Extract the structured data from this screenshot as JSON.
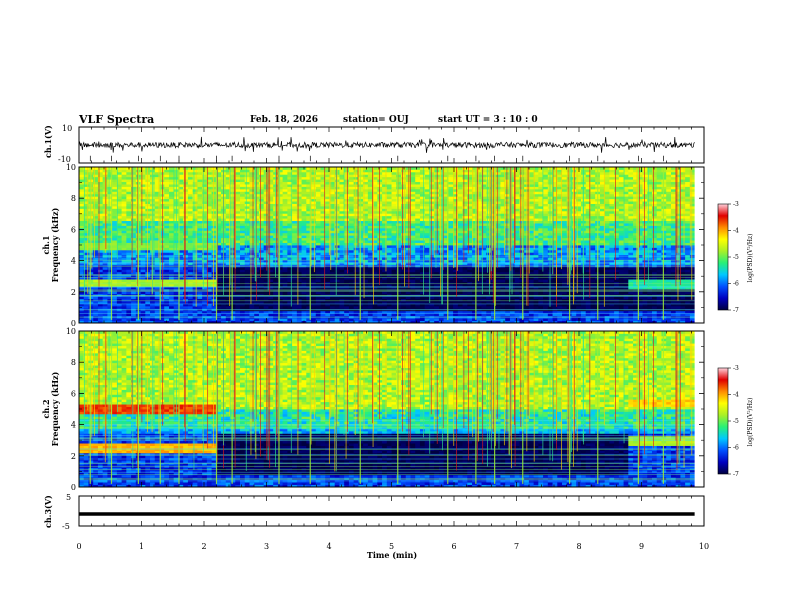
{
  "chart_data": {
    "type": "heatmap",
    "title": "VLF Spectra",
    "date": "Feb. 18, 2026",
    "station": "station= OUJ",
    "start_ut": "start  UT  =   3  : 10 : 0",
    "x": {
      "label": "Time  (min)",
      "range": [
        0,
        10
      ],
      "ticks": [
        "0",
        "1",
        "2",
        "3",
        "4",
        "5",
        "6",
        "7",
        "8",
        "9",
        "10"
      ],
      "data_end": 9.85
    },
    "panels": [
      {
        "id": "ch1-waveform",
        "kind": "waveform",
        "ylabel": "ch.1(V)",
        "yrange": [
          -10,
          10
        ],
        "ticks": [
          "10",
          "-10"
        ]
      },
      {
        "id": "ch1-spectrum",
        "kind": "spectrogram",
        "ylabel1": "ch.1",
        "ylabel2": "Frequency  (kHz)",
        "yrange": [
          0,
          10
        ],
        "ticks": [
          "0",
          "2",
          "4",
          "6",
          "8",
          "10"
        ],
        "bands": [
          {
            "freq_khz": 2.6,
            "t_start": 0,
            "t_end": 2.2,
            "level": -4.6
          },
          {
            "freq_khz": 4.9,
            "t_start": 0,
            "t_end": 2.2,
            "level": -4.8
          },
          {
            "freq_khz": 2.5,
            "t_start": 8.8,
            "t_end": 9.85,
            "level": -5.2
          }
        ],
        "quiet_region": {
          "f_low": 0.8,
          "f_high": 3.6,
          "t_start": 2.2,
          "t_end": 9.85,
          "level": -6.8
        }
      },
      {
        "id": "ch2-spectrum",
        "kind": "spectrogram",
        "ylabel1": "ch.2",
        "ylabel2": "Frequency  (kHz)",
        "yrange": [
          0,
          10
        ],
        "ticks": [
          "0",
          "2",
          "4",
          "6",
          "8",
          "10"
        ],
        "bands": [
          {
            "freq_khz": 5.0,
            "t_start": 0,
            "t_end": 2.2,
            "level": -3.5
          },
          {
            "freq_khz": 2.5,
            "t_start": 0,
            "t_end": 2.2,
            "level": -3.9
          },
          {
            "freq_khz": 5.4,
            "t_start": 8.8,
            "t_end": 9.85,
            "level": -4.0
          },
          {
            "freq_khz": 3.0,
            "t_start": 8.8,
            "t_end": 9.85,
            "level": -4.6
          }
        ],
        "quiet_region": {
          "f_low": 0.8,
          "f_high": 3.4,
          "t_start": 2.2,
          "t_end": 8.8,
          "level": -6.8
        }
      },
      {
        "id": "ch3-waveform",
        "kind": "flatline",
        "ylabel": "ch.3(V)",
        "yrange": [
          -5,
          5
        ],
        "ticks": [
          "5",
          "-5"
        ],
        "value": -1
      }
    ],
    "colorbar": {
      "label": "log(PSD)(V²/Hz)",
      "range": [
        -7,
        -3
      ],
      "ticks": [
        "-3",
        "-4",
        "-5",
        "-6",
        "-7"
      ],
      "stops": [
        "#000040",
        "#0000c0",
        "#0050ff",
        "#00c8ff",
        "#28f078",
        "#a8f028",
        "#ffff00",
        "#ff8c00",
        "#e00000",
        "#ffd2dc"
      ]
    }
  }
}
